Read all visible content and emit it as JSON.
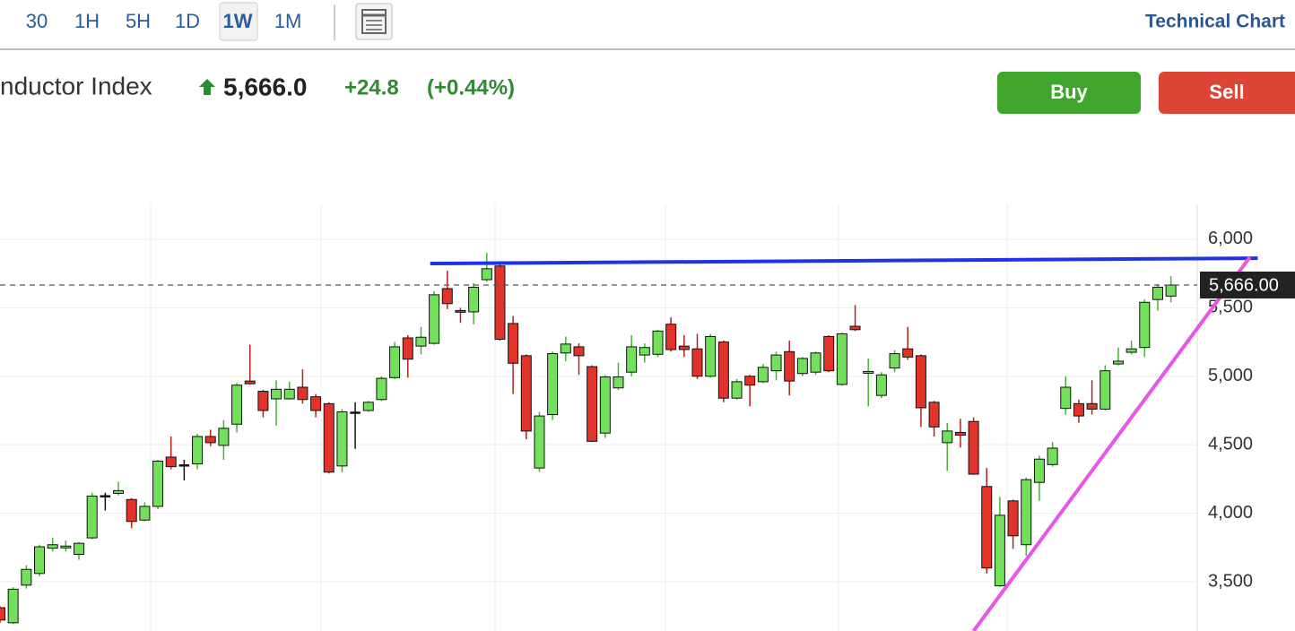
{
  "toolbar": {
    "tabs": [
      "30",
      "1H",
      "5H",
      "1D",
      "1W",
      "1M"
    ],
    "selected": 4,
    "link": "Technical Chart"
  },
  "quote": {
    "name": "nductor Index",
    "price": "5,666.0",
    "change": "+24.8",
    "change_pct": "(+0.44%)"
  },
  "buttons": {
    "buy": "Buy",
    "sell": "Sell"
  },
  "chart_data": {
    "type": "candlestick",
    "open": [
      3310,
      3200,
      3475,
      3560,
      3745,
      3750,
      3700,
      3820,
      4125,
      4145,
      4100,
      3950,
      4050,
      4410,
      4355,
      4360,
      4560,
      4495,
      4650,
      4965,
      4890,
      4835,
      4835,
      4920,
      4850,
      4800,
      4345,
      4736,
      4750,
      4830,
      4990,
      5280,
      5220,
      5240,
      5640,
      5480,
      5470,
      5705,
      5805,
      5385,
      5150,
      4330,
      4720,
      5170,
      5215,
      5070,
      4585,
      4915,
      5030,
      5155,
      5160,
      5380,
      5220,
      5200,
      5000,
      5250,
      4840,
      5000,
      4960,
      5040,
      5180,
      5020,
      5030,
      5290,
      4940,
      5365,
      5025,
      4860,
      5060,
      5200,
      5150,
      4810,
      4515,
      4590,
      4670,
      4195,
      3470,
      4090,
      3770,
      4225,
      4355,
      4765,
      4800,
      4800,
      4760,
      5090,
      5175,
      5210,
      5560,
      5585
    ],
    "high": [
      3320,
      3460,
      3620,
      3770,
      3820,
      3800,
      3790,
      4150,
      4150,
      4230,
      4110,
      4080,
      4390,
      4560,
      4390,
      4580,
      4610,
      4680,
      4950,
      5230,
      4900,
      4970,
      4960,
      5050,
      4870,
      4810,
      4760,
      4810,
      4820,
      5000,
      5250,
      5300,
      5360,
      5620,
      5770,
      5500,
      5680,
      5900,
      5840,
      5440,
      5160,
      4740,
      5180,
      5290,
      5240,
      5080,
      5010,
      5100,
      5300,
      5240,
      5340,
      5430,
      5300,
      5310,
      5310,
      5260,
      4980,
      5010,
      5090,
      5180,
      5260,
      5140,
      5180,
      5300,
      5320,
      5520,
      5130,
      5030,
      5190,
      5360,
      5160,
      4820,
      4660,
      4690,
      4700,
      4330,
      4120,
      4100,
      4260,
      4420,
      4520,
      5000,
      4830,
      4970,
      5080,
      5210,
      5260,
      5560,
      5670,
      5730
    ],
    "low": [
      3200,
      3190,
      3450,
      3540,
      3720,
      3720,
      3660,
      3810,
      4020,
      4130,
      3890,
      3940,
      4030,
      4320,
      4240,
      4320,
      4490,
      4390,
      4590,
      4940,
      4700,
      4640,
      4830,
      4800,
      4700,
      4290,
      4300,
      4470,
      4740,
      4820,
      4980,
      4990,
      5160,
      5230,
      5490,
      5390,
      5380,
      5690,
      5260,
      4870,
      4540,
      4300,
      4680,
      5110,
      5010,
      4520,
      4550,
      4900,
      5000,
      5100,
      5140,
      5180,
      5140,
      4980,
      4990,
      4810,
      4830,
      4780,
      4950,
      4970,
      4860,
      5000,
      5010,
      5030,
      4930,
      5330,
      4780,
      4840,
      5030,
      5120,
      4630,
      4560,
      4310,
      4480,
      4280,
      3560,
      3460,
      3740,
      3690,
      4090,
      4340,
      4720,
      4660,
      4720,
      4750,
      5080,
      5160,
      5140,
      5480,
      5540
    ],
    "close": [
      3220,
      3445,
      3590,
      3755,
      3770,
      3760,
      3780,
      4125,
      4130,
      4165,
      3940,
      4050,
      4380,
      4340,
      4352,
      4560,
      4515,
      4620,
      4935,
      4945,
      4750,
      4905,
      4905,
      4830,
      4750,
      4300,
      4740,
      4740,
      4810,
      4985,
      5215,
      5125,
      5285,
      5595,
      5530,
      5470,
      5650,
      5785,
      5270,
      5095,
      4600,
      4710,
      5165,
      5235,
      5150,
      4525,
      4995,
      4995,
      5215,
      5210,
      5330,
      5195,
      5195,
      5000,
      5290,
      4840,
      4960,
      4935,
      5065,
      5155,
      4965,
      5130,
      5170,
      5040,
      5310,
      5340,
      5035,
      5010,
      5165,
      5140,
      4770,
      4630,
      4600,
      4570,
      4285,
      3600,
      3985,
      3835,
      4245,
      4395,
      4475,
      4920,
      4710,
      4760,
      5040,
      5110,
      5200,
      5540,
      5650,
      5666
    ],
    "up_color": "#72e05a",
    "down_color": "#e2332b",
    "ylim": [
      3140,
      6255
    ],
    "yticks": [
      {
        "value": 3500,
        "label": "3,500"
      },
      {
        "value": 4000,
        "label": "4,000"
      },
      {
        "value": 4500,
        "label": "4,500"
      },
      {
        "value": 5000,
        "label": "5,000"
      },
      {
        "value": 5500,
        "label": "5,500"
      },
      {
        "value": 6000,
        "label": "6,000"
      }
    ],
    "grid": true,
    "last_price": {
      "value": 5666,
      "label": "5,666.00"
    },
    "trend_lines": [
      {
        "color": "#1f33e6",
        "x": [
          32.7,
          95.6
        ],
        "y": [
          5823,
          5862
        ]
      },
      {
        "color": "#e855e8",
        "x": [
          74,
          95
        ],
        "y": [
          3140,
          5869
        ]
      }
    ]
  }
}
